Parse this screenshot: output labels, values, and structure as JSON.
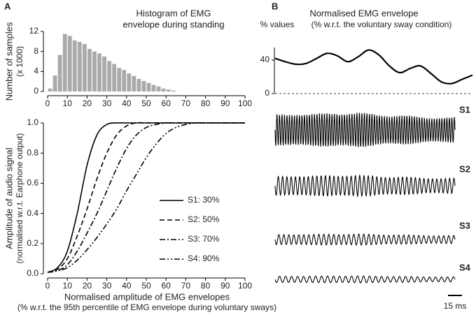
{
  "panels": [
    "A",
    "B"
  ],
  "traces": [
    "S1",
    "S2",
    "S3",
    "S4"
  ],
  "scale_bar": "15 ms",
  "chart_data": [
    {
      "type": "histogram",
      "title": [
        "Histogram of EMG",
        "envelope during standing"
      ],
      "y_label": [
        "Number of samples",
        "(x 1000)"
      ],
      "bins": [
        0,
        2.5,
        5,
        7.5,
        10,
        12.5,
        15,
        17.5,
        20,
        22.5,
        25,
        27.5,
        30,
        32.5,
        35,
        37.5,
        40,
        42.5,
        45,
        47.5,
        50,
        52.5,
        55,
        57.5,
        60,
        62.5,
        65
      ],
      "values": [
        0.6,
        3.2,
        7.3,
        11.5,
        11.1,
        10.2,
        9.9,
        9.5,
        8.5,
        8.0,
        7.6,
        7.0,
        6.1,
        5.5,
        4.7,
        4.3,
        3.6,
        3.1,
        2.5,
        2.1,
        1.7,
        1.3,
        1.0,
        0.6,
        0.4,
        0.2
      ],
      "color": "#aaaaaa",
      "xlim": [
        0,
        100
      ],
      "xticks": [
        0,
        10,
        20,
        30,
        40,
        50,
        60,
        70,
        80,
        90,
        100
      ],
      "ylim": [
        0,
        12
      ],
      "yticks": [
        0,
        4,
        8,
        12
      ]
    },
    {
      "type": "line",
      "x_label": "Normalised amplitude of EMG envelopes",
      "x_note": "(% w.r.t. the 95th percentile of EMG envelope during voluntary sways)",
      "y_label": [
        "Amplitude of audio signal",
        "(normalised w.r.t. Earphone output)"
      ],
      "x": [
        0,
        5,
        10,
        15,
        20,
        25,
        30,
        35,
        40,
        45,
        50,
        55,
        60,
        65,
        70,
        75,
        80,
        85,
        90,
        95,
        100
      ],
      "series": [
        {
          "name": "S1: 30%",
          "color": "#000000",
          "dash": "solid",
          "values": [
            0.01,
            0.04,
            0.15,
            0.4,
            0.72,
            0.92,
            0.99,
            1.0,
            1.0,
            1.0,
            1.0,
            1.0,
            1.0,
            1.0,
            1.0,
            1.0,
            1.0,
            1.0,
            1.0,
            1.0,
            1.0
          ]
        },
        {
          "name": "S2: 50%",
          "color": "#000000",
          "dash": "dashed",
          "values": [
            0.01,
            0.03,
            0.1,
            0.25,
            0.43,
            0.63,
            0.8,
            0.92,
            0.98,
            1.0,
            1.0,
            1.0,
            1.0,
            1.0,
            1.0,
            1.0,
            1.0,
            1.0,
            1.0,
            1.0,
            1.0
          ]
        },
        {
          "name": "S3: 70%",
          "color": "#000000",
          "dash": "dashdot",
          "values": [
            0.01,
            0.02,
            0.06,
            0.15,
            0.27,
            0.4,
            0.55,
            0.7,
            0.83,
            0.92,
            0.97,
            0.99,
            1.0,
            1.0,
            1.0,
            1.0,
            1.0,
            1.0,
            1.0,
            1.0,
            1.0
          ]
        },
        {
          "name": "S4: 90%",
          "color": "#000000",
          "dash": "dashdotdot",
          "values": [
            0.01,
            0.02,
            0.04,
            0.09,
            0.16,
            0.24,
            0.33,
            0.43,
            0.55,
            0.66,
            0.77,
            0.86,
            0.93,
            0.97,
            0.99,
            1.0,
            1.0,
            1.0,
            1.0,
            1.0,
            1.0
          ]
        }
      ],
      "xlim": [
        0,
        100
      ],
      "xticks": [
        0,
        10,
        20,
        30,
        40,
        50,
        60,
        70,
        80,
        90,
        100
      ],
      "ylim": [
        0,
        1
      ],
      "yticks": [
        {
          "value": 0,
          "label": "0.0"
        },
        0.2,
        0.4,
        0.6,
        0.8,
        {
          "value": 1,
          "label": "1.0"
        }
      ]
    },
    {
      "type": "envelope",
      "title": [
        "Normalised EMG envelope",
        "(% w.r.t. the voluntary sway condition)"
      ],
      "y_label": "% values",
      "values": [
        42,
        38,
        35,
        36,
        42,
        48,
        45,
        38,
        44,
        52,
        46,
        33,
        25,
        30,
        33,
        24,
        14,
        12,
        17,
        22
      ],
      "color": "#000000",
      "ylim": [
        0,
        55
      ],
      "yticks": [
        0,
        40
      ],
      "baseline_style": "dashed"
    }
  ]
}
